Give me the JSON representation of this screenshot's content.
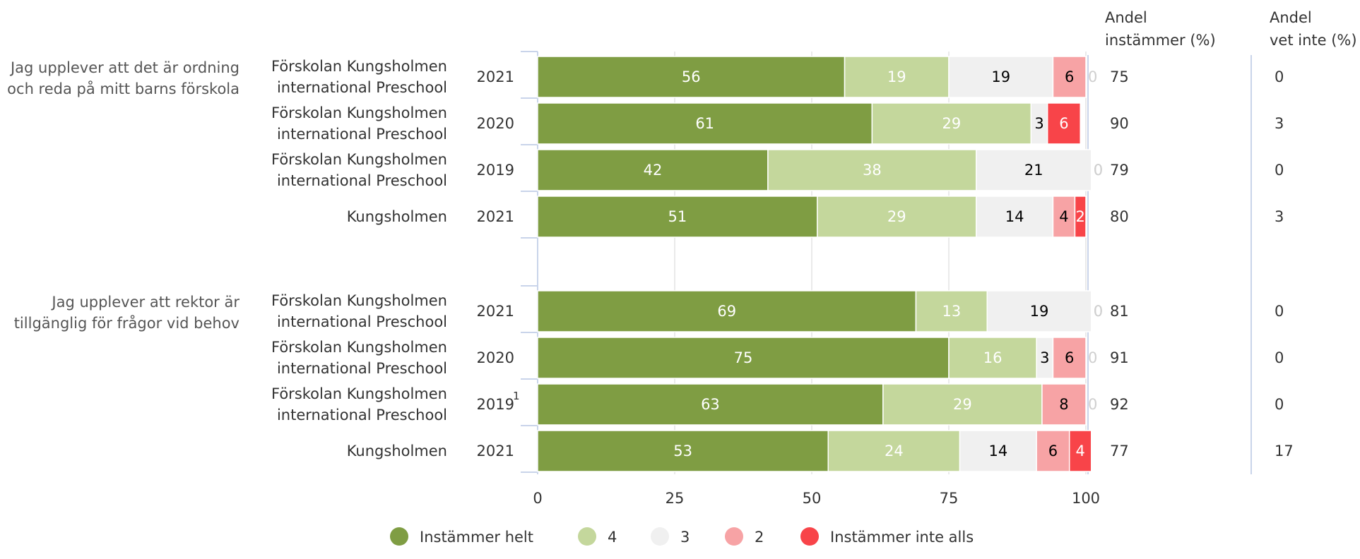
{
  "chart_data": {
    "type": "bar",
    "stacked": true,
    "orientation": "horizontal",
    "xlim": [
      0,
      100
    ],
    "xticks": [
      "0",
      "25",
      "50",
      "75",
      "100"
    ],
    "grid": true,
    "legend_position": "bottom",
    "column_headers": {
      "agree_line1": "Andel",
      "agree_line2": "instämmer (%)",
      "dontknow_line1": "Andel",
      "dontknow_line2": "vet inte (%)"
    },
    "series": [
      {
        "name": "Instämmer helt",
        "color": "#7f9d43",
        "text_color": "#ffffff"
      },
      {
        "name": "4",
        "color": "#c4d79c",
        "text_color": "#ffffff"
      },
      {
        "name": "3",
        "color": "#f0f0f0",
        "text_color": "#000000"
      },
      {
        "name": "2",
        "color": "#f7a3a5",
        "text_color": "#000000"
      },
      {
        "name": "Instämmer inte alls",
        "color": "#f84449",
        "text_color": "#ffffff"
      }
    ],
    "groups": [
      {
        "question_line1": "Jag upplever att det är ordning",
        "question_line2": "och reda på mitt barns förskola",
        "rows": [
          {
            "unit_line1": "Förskolan Kungsholmen",
            "unit_line2": "international Preschool",
            "year": "2021",
            "note": "",
            "values": [
              56,
              19,
              19,
              6,
              0
            ],
            "agree": "75",
            "dont_know": "0"
          },
          {
            "unit_line1": "Förskolan Kungsholmen",
            "unit_line2": "international Preschool",
            "year": "2020",
            "note": "",
            "values": [
              61,
              29,
              3,
              0,
              6
            ],
            "agree": "90",
            "dont_know": "3"
          },
          {
            "unit_line1": "Förskolan Kungsholmen",
            "unit_line2": "international Preschool",
            "year": "2019",
            "note": "",
            "values": [
              42,
              38,
              21,
              0,
              0
            ],
            "agree": "79",
            "dont_know": "0"
          },
          {
            "unit_line1": "Kungsholmen",
            "unit_line2": "",
            "year": "2021",
            "note": "",
            "values": [
              51,
              29,
              14,
              4,
              2
            ],
            "agree": "80",
            "dont_know": "3"
          }
        ]
      },
      {
        "question_line1": "Jag upplever att rektor är",
        "question_line2": "tillgänglig för frågor vid behov",
        "rows": [
          {
            "unit_line1": "Förskolan Kungsholmen",
            "unit_line2": "international Preschool",
            "year": "2021",
            "note": "",
            "values": [
              69,
              13,
              19,
              0,
              0
            ],
            "agree": "81",
            "dont_know": "0"
          },
          {
            "unit_line1": "Förskolan Kungsholmen",
            "unit_line2": "international Preschool",
            "year": "2020",
            "note": "",
            "values": [
              75,
              16,
              3,
              6,
              0
            ],
            "agree": "91",
            "dont_know": "0"
          },
          {
            "unit_line1": "Förskolan Kungsholmen",
            "unit_line2": "international Preschool",
            "year": "2019",
            "note": "1",
            "values": [
              63,
              29,
              0,
              8,
              0
            ],
            "agree": "92",
            "dont_know": "0"
          },
          {
            "unit_line1": "Kungsholmen",
            "unit_line2": "",
            "year": "2021",
            "note": "",
            "values": [
              53,
              24,
              14,
              6,
              4
            ],
            "agree": "77",
            "dont_know": "17"
          }
        ]
      }
    ]
  }
}
